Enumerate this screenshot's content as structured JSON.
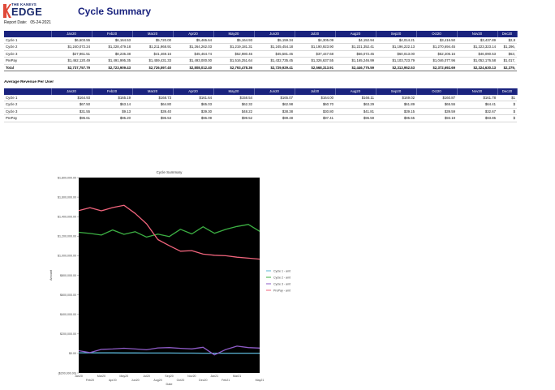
{
  "header": {
    "logo_small": "THE KANEVS",
    "logo_big": "EDGE",
    "title": "Cycle Summary",
    "report_date_label": "Report Date:",
    "report_date": "05-24-2021"
  },
  "table1": {
    "columns": [
      "Jan20",
      "Feb20",
      "Mar20",
      "Apr20",
      "May20",
      "Jun20",
      "Jul20",
      "Aug20",
      "Sep20",
      "Oct20",
      "Nov20",
      "Dec20"
    ],
    "rows": [
      {
        "label": "Cycle 1",
        "values": [
          "$6,603.55",
          "$6,164.53",
          "$5,720.00",
          "$5,465.64",
          "$5,164.93",
          "$5,159.34",
          "$4,305.09",
          "$4,152.94",
          "$4,014.21",
          "$3,416.50",
          "$3,437.89",
          "$2,8"
        ]
      },
      {
        "label": "Cycle 2",
        "values": [
          "$1,240,072.24",
          "$1,228,479.18",
          "$1,211,968.91",
          "$1,264,262.03",
          "$1,219,181.31",
          "$1,245,454.18",
          "$1,190,923.90",
          "$1,221,352.41",
          "$1,196,222.13",
          "$1,270,694.45",
          "$1,223,323.14",
          "$1,296,"
        ]
      },
      {
        "label": "Cycle 3",
        "values": [
          "$27,961.51",
          "$8,235.38",
          "$41,469.16",
          "$45,464.74",
          "$52,980.46",
          "$45,581.46",
          "$37,447.68",
          "$56,072.45",
          "$60,013.00",
          "$52,206.16",
          "$46,090.53",
          "$63,"
        ]
      },
      {
        "label": "PrePay",
        "values": [
          "$1,462,120.49",
          "$1,491,995.35",
          "$1,459,431.33",
          "$1,493,000.00",
          "$1,516,251.64",
          "$1,432,735.45",
          "$1,326,637.55",
          "$1,165,246.99",
          "$1,103,723.79",
          "$1,046,077.96",
          "$1,052,176.58",
          "$1,017,"
        ]
      }
    ],
    "total": {
      "label": "Total",
      "values": [
        "$2,737,757.79",
        "$2,723,909.43",
        "$2,726,597.40",
        "$2,808,012.40",
        "$2,793,478.36",
        "$2,729,929.41",
        "$2,568,313.91",
        "$2,446,775.59",
        "$2,313,952.53",
        "$2,372,692.69",
        "$2,324,630.13",
        "$2,379,"
      ]
    }
  },
  "section2_title": "Average Revenue Per User",
  "table2": {
    "columns": [
      "Jan20",
      "Feb20",
      "Mar20",
      "Apr20",
      "May20",
      "Jun20",
      "Jul20",
      "Aug20",
      "Sep20",
      "Oct20",
      "Nov20",
      "Dec20"
    ],
    "rows": [
      {
        "label": "Cycle 1",
        "values": [
          "$164.93",
          "$165.19",
          "$168.73",
          "$161.64",
          "$158.54",
          "$165.07",
          "$164.00",
          "$166.11",
          "$169.02",
          "$160.87",
          "$161.78",
          "$1"
        ]
      },
      {
        "label": "Cycle 2",
        "values": [
          "$67.50",
          "$63.14",
          "$64.80",
          "$65.03",
          "$62.32",
          "$62.98",
          "$60.70",
          "$63.29",
          "$61.89",
          "$65.55",
          "$64.41",
          "$"
        ]
      },
      {
        "label": "Cycle 3",
        "values": [
          "$31.55",
          "$9.13",
          "$39.40",
          "$39.30",
          "$48.22",
          "$38.38",
          "$30.80",
          "$41.81",
          "$39.15",
          "$39.59",
          "$32.67",
          "$"
        ]
      },
      {
        "label": "PrePay",
        "values": [
          "$95.61",
          "$95.20",
          "$95.53",
          "$96.09",
          "$99.52",
          "$99.48",
          "$97.41",
          "$96.59",
          "$95.55",
          "$93.19",
          "$93.85",
          "$"
        ]
      }
    ]
  },
  "chart_data": {
    "type": "line",
    "title": "Cycle Summary",
    "xlabel": "Date",
    "ylabel": "Amount",
    "ylim": [
      -200000,
      1800000
    ],
    "y_ticks": [
      "$1,800,000.00",
      "$1,600,000.00",
      "$1,400,000.00",
      "$1,200,000.00",
      "$1,000,000.00",
      "$800,000.00",
      "$600,000.00",
      "$400,000.00",
      "$200,000.00",
      "$0.00",
      "($200,000.00)"
    ],
    "x_ticks_top": [
      "Jan20",
      "Mar20",
      "May20",
      "Jul20",
      "Sep20",
      "Nov20",
      "Jan21",
      "Mar21"
    ],
    "x_ticks_bottom": [
      "Feb20",
      "Apr20",
      "Jun20",
      "Aug20",
      "Oct20",
      "Dec20",
      "Feb21",
      "May21"
    ],
    "x": [
      "Jan20",
      "Feb20",
      "Mar20",
      "Apr20",
      "May20",
      "Jun20",
      "Jul20",
      "Aug20",
      "Sep20",
      "Oct20",
      "Nov20",
      "Dec20",
      "Jan21",
      "Feb21",
      "Mar21",
      "Apr21",
      "May21"
    ],
    "series": [
      {
        "name": "Cycle 1 - amt",
        "color": "#5ab4d6",
        "values": [
          6603,
          6164,
          5720,
          5465,
          5164,
          5159,
          4305,
          4152,
          4014,
          3416,
          3437,
          2800,
          2600,
          2400,
          2300,
          2200,
          2100
        ]
      },
      {
        "name": "Cycle 2 - amt",
        "color": "#3cb043",
        "values": [
          1240072,
          1228479,
          1211968,
          1264262,
          1219181,
          1245454,
          1190923,
          1221352,
          1196222,
          1270694,
          1223323,
          1296000,
          1230000,
          1270000,
          1300000,
          1320000,
          1250000
        ]
      },
      {
        "name": "Cycle 3 - amt",
        "color": "#8e5bc7",
        "values": [
          27961,
          8235,
          41469,
          45464,
          52980,
          45581,
          37447,
          56072,
          60013,
          52206,
          46090,
          63000,
          -15000,
          40000,
          75000,
          60000,
          55000
        ]
      },
      {
        "name": "PrePay - amt",
        "color": "#f0647c",
        "values": [
          1462120,
          1491995,
          1459431,
          1493000,
          1516251,
          1432735,
          1326637,
          1165246,
          1103723,
          1046077,
          1052176,
          1017000,
          1005000,
          1000000,
          985000,
          975000,
          965000
        ]
      }
    ]
  }
}
